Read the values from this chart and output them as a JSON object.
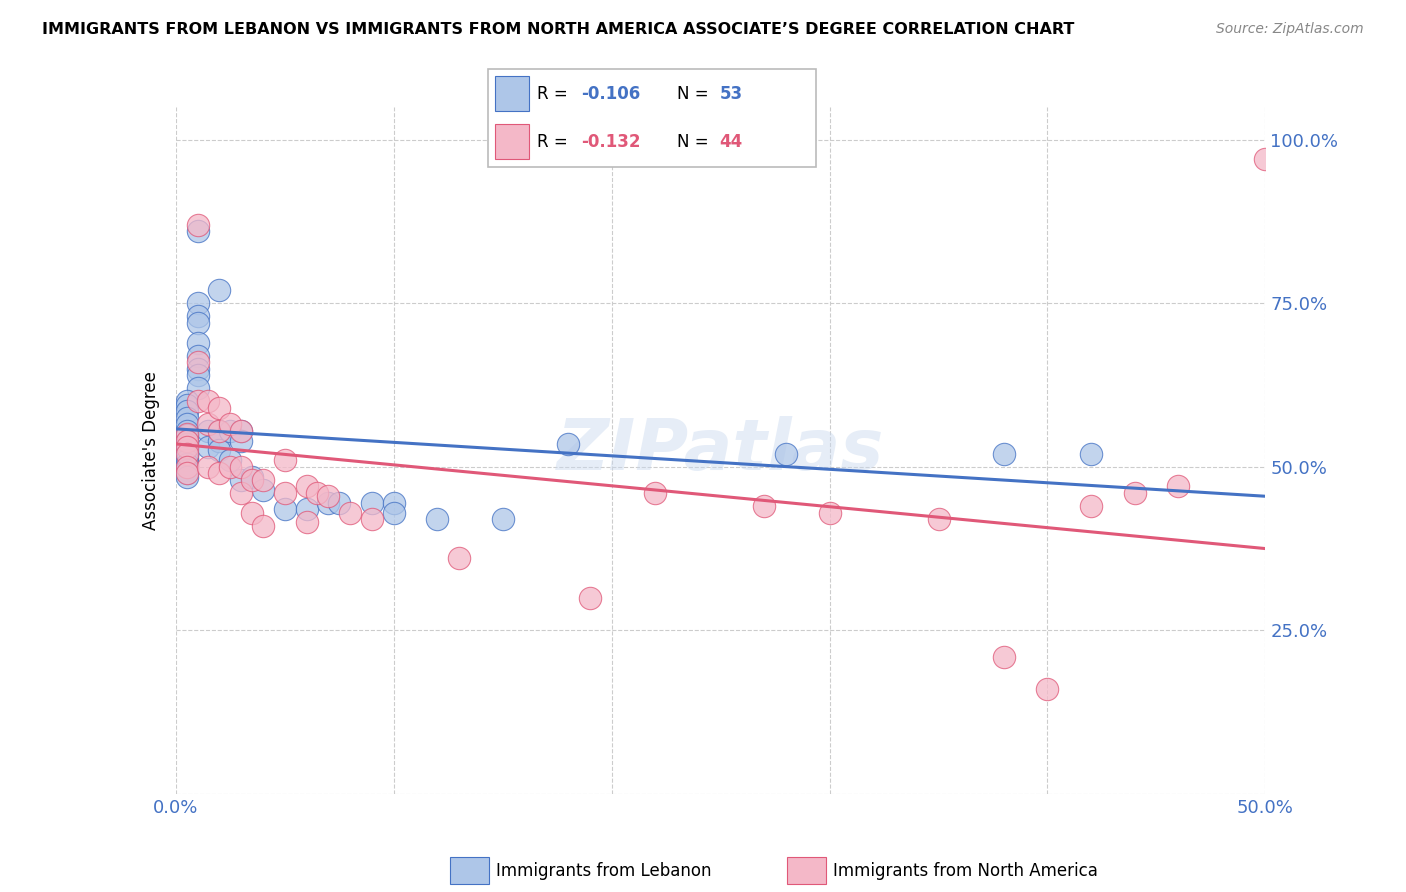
{
  "title": "IMMIGRANTS FROM LEBANON VS IMMIGRANTS FROM NORTH AMERICA ASSOCIATE’S DEGREE CORRELATION CHART",
  "source": "Source: ZipAtlas.com",
  "ylabel_label": "Associate's Degree",
  "xlim": [
    0.0,
    0.5
  ],
  "ylim": [
    0.0,
    1.05
  ],
  "label1": "Immigrants from Lebanon",
  "label2": "Immigrants from North America",
  "color1": "#aec6e8",
  "color2": "#f4b8c8",
  "line_color1": "#4472c4",
  "line_color2": "#e05878",
  "tick_color": "#4472c4",
  "grid_color": "#cccccc",
  "watermark": "ZIPatlas",
  "blue_x": [
    0.01,
    0.02,
    0.01,
    0.01,
    0.01,
    0.01,
    0.01,
    0.01,
    0.01,
    0.01,
    0.005,
    0.005,
    0.005,
    0.005,
    0.005,
    0.005,
    0.005,
    0.005,
    0.005,
    0.005,
    0.005,
    0.005,
    0.005,
    0.005,
    0.005,
    0.005,
    0.005,
    0.005,
    0.015,
    0.015,
    0.02,
    0.02,
    0.02,
    0.025,
    0.025,
    0.03,
    0.03,
    0.03,
    0.035,
    0.04,
    0.05,
    0.06,
    0.07,
    0.075,
    0.09,
    0.1,
    0.1,
    0.12,
    0.15,
    0.18,
    0.28,
    0.38,
    0.42
  ],
  "blue_y": [
    0.86,
    0.77,
    0.75,
    0.73,
    0.72,
    0.69,
    0.67,
    0.65,
    0.64,
    0.62,
    0.6,
    0.595,
    0.585,
    0.575,
    0.565,
    0.555,
    0.548,
    0.54,
    0.535,
    0.525,
    0.52,
    0.515,
    0.51,
    0.505,
    0.5,
    0.495,
    0.49,
    0.485,
    0.555,
    0.53,
    0.555,
    0.54,
    0.525,
    0.555,
    0.51,
    0.555,
    0.54,
    0.48,
    0.485,
    0.465,
    0.435,
    0.435,
    0.445,
    0.445,
    0.445,
    0.445,
    0.43,
    0.42,
    0.42,
    0.535,
    0.52,
    0.52,
    0.52
  ],
  "pink_x": [
    0.005,
    0.005,
    0.005,
    0.005,
    0.005,
    0.005,
    0.01,
    0.01,
    0.01,
    0.015,
    0.015,
    0.015,
    0.02,
    0.02,
    0.02,
    0.025,
    0.025,
    0.03,
    0.03,
    0.03,
    0.035,
    0.035,
    0.04,
    0.04,
    0.05,
    0.05,
    0.06,
    0.06,
    0.065,
    0.07,
    0.08,
    0.09,
    0.13,
    0.19,
    0.22,
    0.27,
    0.3,
    0.35,
    0.38,
    0.4,
    0.42,
    0.44,
    0.46,
    0.5
  ],
  "pink_y": [
    0.55,
    0.54,
    0.53,
    0.52,
    0.5,
    0.49,
    0.87,
    0.66,
    0.6,
    0.6,
    0.565,
    0.5,
    0.59,
    0.555,
    0.49,
    0.565,
    0.5,
    0.555,
    0.5,
    0.46,
    0.48,
    0.43,
    0.48,
    0.41,
    0.51,
    0.46,
    0.47,
    0.415,
    0.46,
    0.455,
    0.43,
    0.42,
    0.36,
    0.3,
    0.46,
    0.44,
    0.43,
    0.42,
    0.21,
    0.16,
    0.44,
    0.46,
    0.47,
    0.97
  ]
}
